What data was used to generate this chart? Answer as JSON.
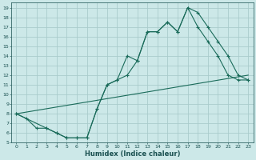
{
  "xlabel": "Humidex (Indice chaleur)",
  "background_color": "#cce8e8",
  "grid_color": "#aacccc",
  "line_color": "#1a6b5a",
  "xlim": [
    -0.5,
    23.5
  ],
  "ylim": [
    5,
    19.5
  ],
  "xticks": [
    0,
    1,
    2,
    3,
    4,
    5,
    6,
    7,
    8,
    9,
    10,
    11,
    12,
    13,
    14,
    15,
    16,
    17,
    18,
    19,
    20,
    21,
    22,
    23
  ],
  "yticks": [
    5,
    6,
    7,
    8,
    9,
    10,
    11,
    12,
    13,
    14,
    15,
    16,
    17,
    18,
    19
  ],
  "line1_x": [
    0,
    1,
    2,
    3,
    4,
    5,
    6,
    7,
    8,
    9,
    10,
    11,
    12,
    13,
    14,
    15,
    16,
    17,
    18,
    19,
    20,
    21,
    22,
    23
  ],
  "line1_y": [
    8.0,
    7.5,
    6.5,
    6.5,
    6.0,
    5.5,
    5.5,
    5.5,
    8.5,
    11.0,
    11.5,
    14.0,
    13.5,
    16.5,
    16.5,
    17.5,
    16.5,
    19.0,
    18.5,
    17.0,
    15.5,
    14.0,
    12.0,
    11.5
  ],
  "line2_x": [
    0,
    23
  ],
  "line2_y": [
    8.0,
    12.0
  ],
  "line3_x": [
    0,
    3,
    4,
    5,
    6,
    7,
    8,
    9,
    10,
    11,
    12,
    13,
    14,
    15,
    16,
    17,
    18,
    19,
    20,
    21,
    22,
    23
  ],
  "line3_y": [
    8.0,
    6.5,
    6.0,
    5.5,
    5.5,
    5.5,
    8.5,
    11.0,
    11.5,
    12.0,
    13.5,
    16.5,
    16.5,
    17.5,
    16.5,
    19.0,
    17.0,
    15.5,
    14.0,
    12.0,
    11.5,
    11.5
  ]
}
